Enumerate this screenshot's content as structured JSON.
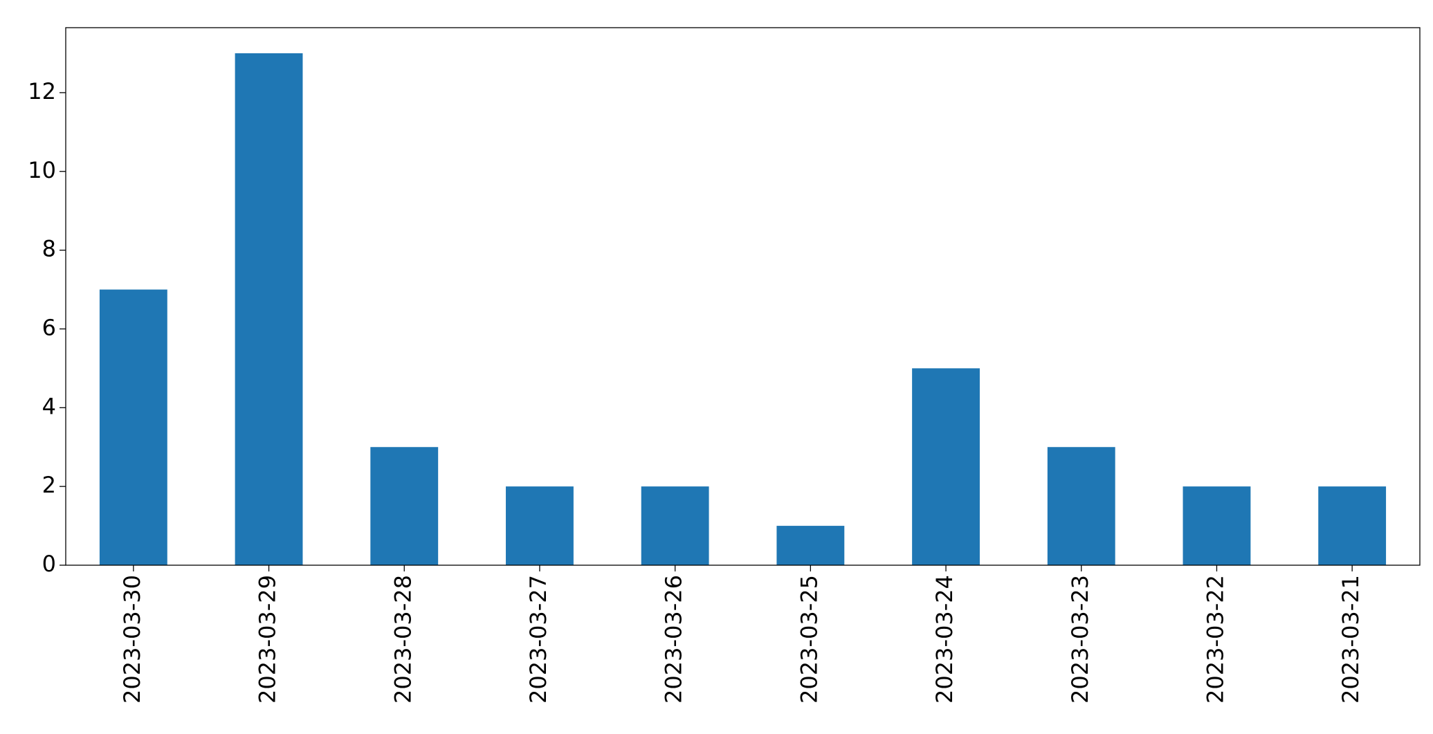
{
  "chart_data": {
    "type": "bar",
    "categories": [
      "2023-03-30",
      "2023-03-29",
      "2023-03-28",
      "2023-03-27",
      "2023-03-26",
      "2023-03-25",
      "2023-03-24",
      "2023-03-23",
      "2023-03-22",
      "2023-03-21"
    ],
    "values": [
      7,
      13,
      3,
      2,
      2,
      1,
      5,
      3,
      2,
      2
    ],
    "color": "#1f77b4",
    "ylim": [
      0,
      13.65
    ],
    "yticks": [
      0,
      2,
      4,
      6,
      8,
      10,
      12
    ],
    "grid": false
  }
}
